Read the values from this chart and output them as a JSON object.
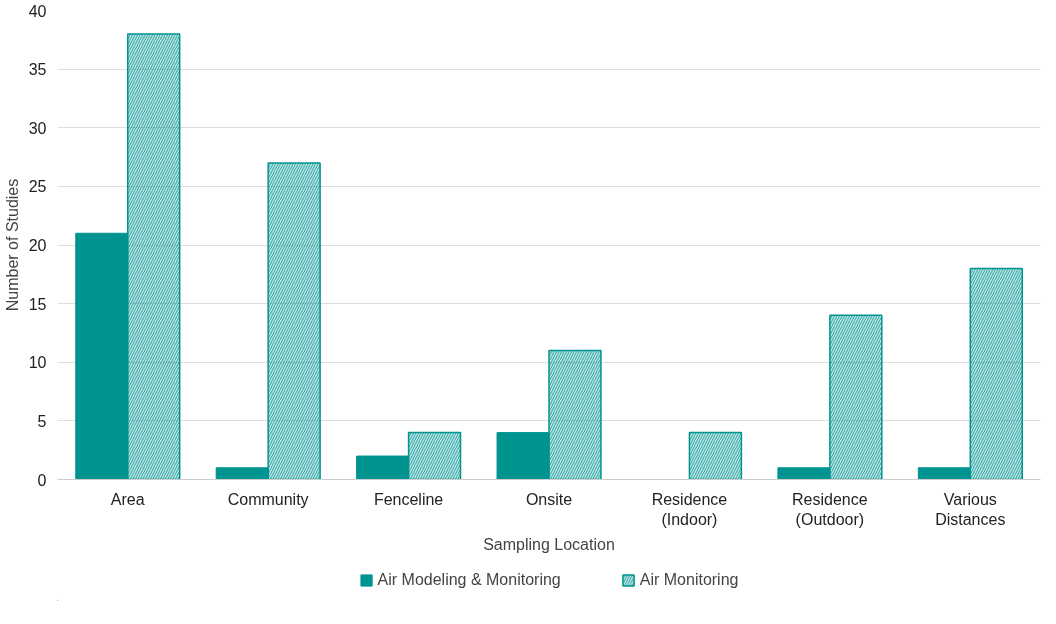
{
  "chart_data": {
    "type": "bar",
    "xlabel": "Sampling Location",
    "ylabel": "Number of Studies",
    "categories": [
      "Area",
      "Community",
      "Fenceline",
      "Onsite",
      "Residence\n(Indoor)",
      "Residence\n(Outdoor)",
      "Various\nDistances"
    ],
    "series": [
      {
        "name": "Air Modeling & Monitoring",
        "color": "#009490",
        "values": [
          21,
          1,
          2,
          4,
          0,
          1,
          1
        ]
      },
      {
        "name": "Air Monitoring",
        "color": "#009490",
        "values": [
          38,
          27,
          4,
          11,
          4,
          14,
          18
        ]
      }
    ],
    "ylim": [
      0,
      40
    ],
    "yticks": [
      0,
      5,
      10,
      15,
      20,
      25,
      30,
      35,
      40
    ],
    "grid": "y",
    "legend": "bottom"
  }
}
